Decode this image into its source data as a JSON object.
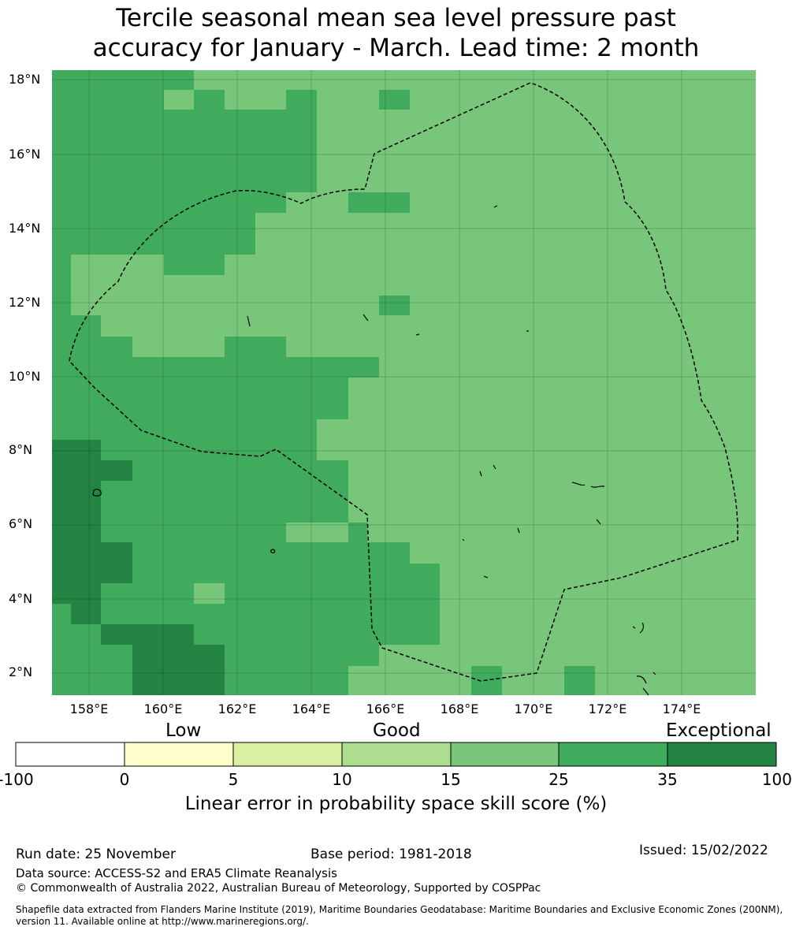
{
  "title": {
    "line1": "Tercile seasonal mean sea level pressure past",
    "line2": "accuracy for January - March. Lead time: 2 month"
  },
  "map": {
    "lat_ticks": [
      "18°N",
      "16°N",
      "14°N",
      "12°N",
      "10°N",
      "8°N",
      "6°N",
      "4°N",
      "2°N"
    ],
    "lon_ticks": [
      "158°E",
      "160°E",
      "162°E",
      "164°E",
      "166°E",
      "168°E",
      "170°E",
      "172°E",
      "174°E"
    ],
    "boundary": "Maritime boundary / Exclusive Economic Zone (dashed outline)"
  },
  "legend": {
    "categories": [
      "Low",
      "Good",
      "Exceptional"
    ],
    "ticks": [
      "-100",
      "0",
      "5",
      "10",
      "15",
      "25",
      "35",
      "100"
    ],
    "colors": [
      "#ffffff",
      "#ffffcc",
      "#d9f0a3",
      "#addd8e",
      "#78c679",
      "#41ab5d",
      "#238443"
    ],
    "title": "Linear error in probability space skill score (%)"
  },
  "footer": {
    "run_date": "Run date: 25 November",
    "base_period": "Base period: 1981-2018",
    "issued": "Issued: 15/02/2022",
    "data_source": "Data source: ACCESS-S2 and ERA5 Climate Reanalysis",
    "copyright": "© Commonwealth of Australia 2022, Australian Bureau of Meteorology, Supported by COSPPac",
    "shapefile_line1": "Shapefile data extracted from Flanders Marine Institute (2019), Maritime Boundaries Geodatabase: Maritime Boundaries and Exclusive Economic Zones (200NM),",
    "shapefile_line2": "version 11. Available online at http://www.marineregions.org/."
  }
}
